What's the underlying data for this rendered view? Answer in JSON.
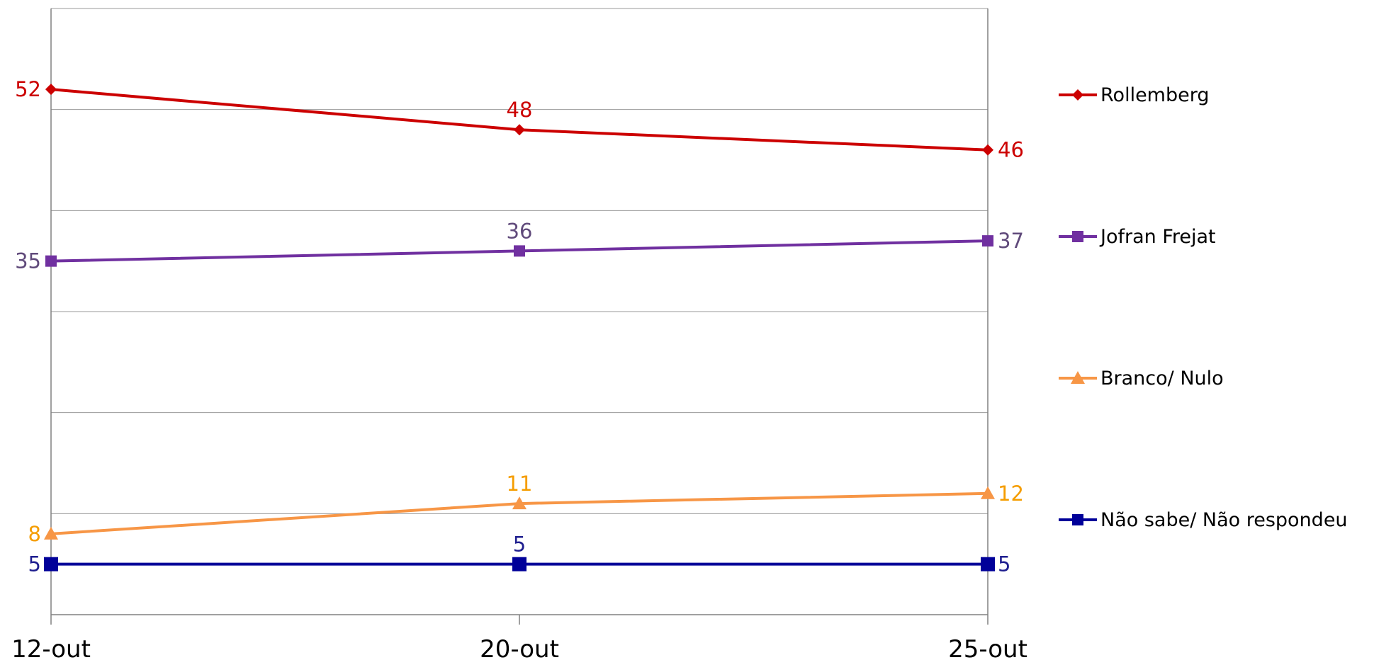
{
  "chart_data": {
    "type": "line",
    "categories": [
      "12-out",
      "20-out",
      "25-out"
    ],
    "ylim": [
      0,
      60
    ],
    "grid": true,
    "legend_position": "right",
    "series": [
      {
        "name": "Rollemberg",
        "values": [
          52,
          48,
          46
        ],
        "color": "#cc0000",
        "label_color": "#cc0000",
        "marker": "diamond"
      },
      {
        "name": "Jofran Frejat",
        "values": [
          35,
          36,
          37
        ],
        "color": "#7030a0",
        "label_color": "#604a7b",
        "marker": "square"
      },
      {
        "name": "Branco/ Nulo",
        "values": [
          8,
          11,
          12
        ],
        "color": "#f79646",
        "label_color": "#f59d00",
        "marker": "triangle"
      },
      {
        "name": "Não sabe/ Não respondeu",
        "values": [
          5,
          5,
          5
        ],
        "color": "#000099",
        "label_color": "#1f1f8f",
        "marker": "square-large"
      }
    ]
  }
}
